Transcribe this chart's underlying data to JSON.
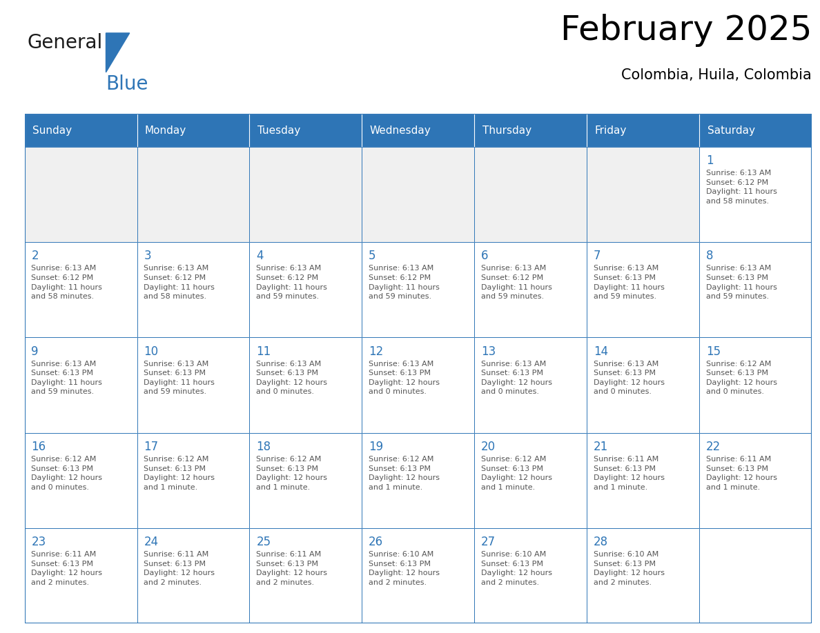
{
  "title": "February 2025",
  "subtitle": "Colombia, Huila, Colombia",
  "header_bg": "#2E75B6",
  "header_text_color": "#FFFFFF",
  "cell_bg": "#FFFFFF",
  "border_color": "#2E75B6",
  "day_number_color": "#2E75B6",
  "info_text_color": "#555555",
  "days_of_week": [
    "Sunday",
    "Monday",
    "Tuesday",
    "Wednesday",
    "Thursday",
    "Friday",
    "Saturday"
  ],
  "calendar": [
    [
      null,
      null,
      null,
      null,
      null,
      null,
      {
        "day": 1,
        "sunrise": "6:13 AM",
        "sunset": "6:12 PM",
        "daylight_line1": "Daylight: 11 hours",
        "daylight_line2": "and 58 minutes."
      }
    ],
    [
      {
        "day": 2,
        "sunrise": "6:13 AM",
        "sunset": "6:12 PM",
        "daylight_line1": "Daylight: 11 hours",
        "daylight_line2": "and 58 minutes."
      },
      {
        "day": 3,
        "sunrise": "6:13 AM",
        "sunset": "6:12 PM",
        "daylight_line1": "Daylight: 11 hours",
        "daylight_line2": "and 58 minutes."
      },
      {
        "day": 4,
        "sunrise": "6:13 AM",
        "sunset": "6:12 PM",
        "daylight_line1": "Daylight: 11 hours",
        "daylight_line2": "and 59 minutes."
      },
      {
        "day": 5,
        "sunrise": "6:13 AM",
        "sunset": "6:12 PM",
        "daylight_line1": "Daylight: 11 hours",
        "daylight_line2": "and 59 minutes."
      },
      {
        "day": 6,
        "sunrise": "6:13 AM",
        "sunset": "6:12 PM",
        "daylight_line1": "Daylight: 11 hours",
        "daylight_line2": "and 59 minutes."
      },
      {
        "day": 7,
        "sunrise": "6:13 AM",
        "sunset": "6:13 PM",
        "daylight_line1": "Daylight: 11 hours",
        "daylight_line2": "and 59 minutes."
      },
      {
        "day": 8,
        "sunrise": "6:13 AM",
        "sunset": "6:13 PM",
        "daylight_line1": "Daylight: 11 hours",
        "daylight_line2": "and 59 minutes."
      }
    ],
    [
      {
        "day": 9,
        "sunrise": "6:13 AM",
        "sunset": "6:13 PM",
        "daylight_line1": "Daylight: 11 hours",
        "daylight_line2": "and 59 minutes."
      },
      {
        "day": 10,
        "sunrise": "6:13 AM",
        "sunset": "6:13 PM",
        "daylight_line1": "Daylight: 11 hours",
        "daylight_line2": "and 59 minutes."
      },
      {
        "day": 11,
        "sunrise": "6:13 AM",
        "sunset": "6:13 PM",
        "daylight_line1": "Daylight: 12 hours",
        "daylight_line2": "and 0 minutes."
      },
      {
        "day": 12,
        "sunrise": "6:13 AM",
        "sunset": "6:13 PM",
        "daylight_line1": "Daylight: 12 hours",
        "daylight_line2": "and 0 minutes."
      },
      {
        "day": 13,
        "sunrise": "6:13 AM",
        "sunset": "6:13 PM",
        "daylight_line1": "Daylight: 12 hours",
        "daylight_line2": "and 0 minutes."
      },
      {
        "day": 14,
        "sunrise": "6:13 AM",
        "sunset": "6:13 PM",
        "daylight_line1": "Daylight: 12 hours",
        "daylight_line2": "and 0 minutes."
      },
      {
        "day": 15,
        "sunrise": "6:12 AM",
        "sunset": "6:13 PM",
        "daylight_line1": "Daylight: 12 hours",
        "daylight_line2": "and 0 minutes."
      }
    ],
    [
      {
        "day": 16,
        "sunrise": "6:12 AM",
        "sunset": "6:13 PM",
        "daylight_line1": "Daylight: 12 hours",
        "daylight_line2": "and 0 minutes."
      },
      {
        "day": 17,
        "sunrise": "6:12 AM",
        "sunset": "6:13 PM",
        "daylight_line1": "Daylight: 12 hours",
        "daylight_line2": "and 1 minute."
      },
      {
        "day": 18,
        "sunrise": "6:12 AM",
        "sunset": "6:13 PM",
        "daylight_line1": "Daylight: 12 hours",
        "daylight_line2": "and 1 minute."
      },
      {
        "day": 19,
        "sunrise": "6:12 AM",
        "sunset": "6:13 PM",
        "daylight_line1": "Daylight: 12 hours",
        "daylight_line2": "and 1 minute."
      },
      {
        "day": 20,
        "sunrise": "6:12 AM",
        "sunset": "6:13 PM",
        "daylight_line1": "Daylight: 12 hours",
        "daylight_line2": "and 1 minute."
      },
      {
        "day": 21,
        "sunrise": "6:11 AM",
        "sunset": "6:13 PM",
        "daylight_line1": "Daylight: 12 hours",
        "daylight_line2": "and 1 minute."
      },
      {
        "day": 22,
        "sunrise": "6:11 AM",
        "sunset": "6:13 PM",
        "daylight_line1": "Daylight: 12 hours",
        "daylight_line2": "and 1 minute."
      }
    ],
    [
      {
        "day": 23,
        "sunrise": "6:11 AM",
        "sunset": "6:13 PM",
        "daylight_line1": "Daylight: 12 hours",
        "daylight_line2": "and 2 minutes."
      },
      {
        "day": 24,
        "sunrise": "6:11 AM",
        "sunset": "6:13 PM",
        "daylight_line1": "Daylight: 12 hours",
        "daylight_line2": "and 2 minutes."
      },
      {
        "day": 25,
        "sunrise": "6:11 AM",
        "sunset": "6:13 PM",
        "daylight_line1": "Daylight: 12 hours",
        "daylight_line2": "and 2 minutes."
      },
      {
        "day": 26,
        "sunrise": "6:10 AM",
        "sunset": "6:13 PM",
        "daylight_line1": "Daylight: 12 hours",
        "daylight_line2": "and 2 minutes."
      },
      {
        "day": 27,
        "sunrise": "6:10 AM",
        "sunset": "6:13 PM",
        "daylight_line1": "Daylight: 12 hours",
        "daylight_line2": "and 2 minutes."
      },
      {
        "day": 28,
        "sunrise": "6:10 AM",
        "sunset": "6:13 PM",
        "daylight_line1": "Daylight: 12 hours",
        "daylight_line2": "and 2 minutes."
      },
      null
    ]
  ],
  "logo_general_color": "#1a1a1a",
  "logo_blue_color": "#2E75B6",
  "logo_triangle_color": "#2E75B6"
}
